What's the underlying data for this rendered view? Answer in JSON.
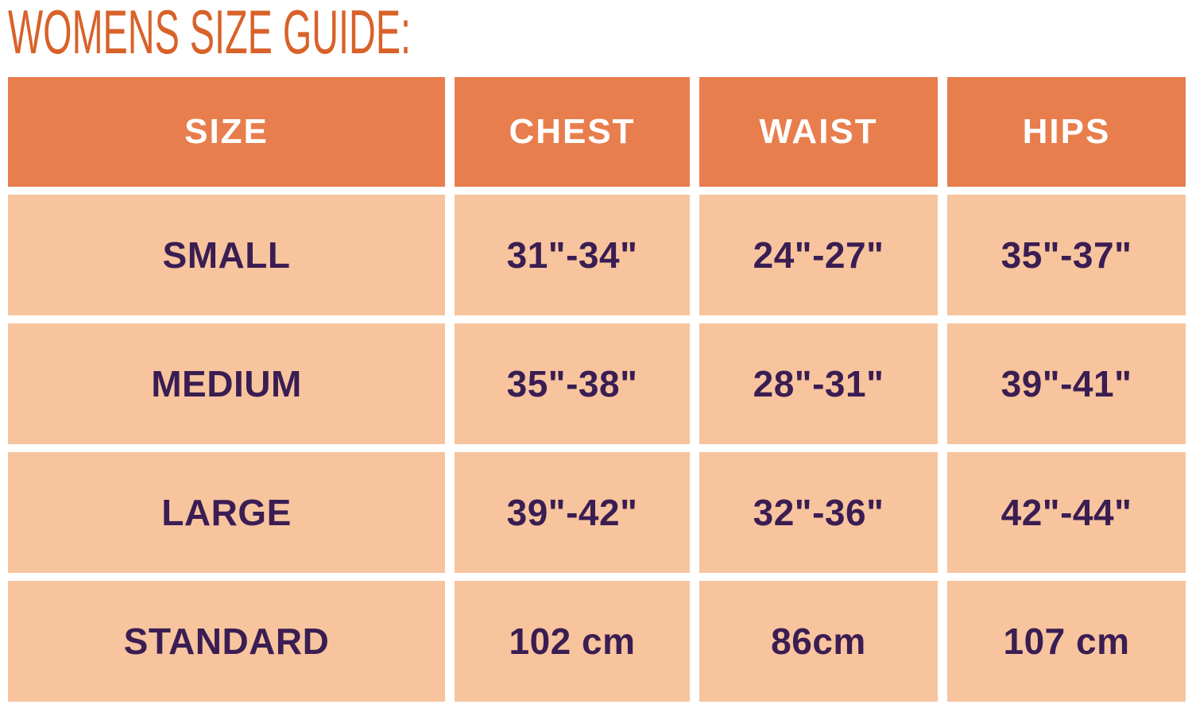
{
  "title": "WOMENS SIZE GUIDE:",
  "colors": {
    "title_orange": "#d8622a",
    "header_bg": "#e87e4d",
    "header_text": "#ffffff",
    "row_bg": "#f7c49e",
    "row_text": "#3a1d52",
    "background": "#ffffff"
  },
  "chart_data": {
    "type": "table",
    "title": "WOMENS SIZE GUIDE:",
    "columns": [
      "SIZE",
      "CHEST",
      "WAIST",
      "HIPS"
    ],
    "rows": [
      [
        "SMALL",
        "31\"-34\"",
        "24\"-27\"",
        "35\"-37\""
      ],
      [
        "MEDIUM",
        "35\"-38\"",
        "28\"-31\"",
        "39\"-41\""
      ],
      [
        "LARGE",
        "39\"-42\"",
        "32\"-36\"",
        "42\"-44\""
      ],
      [
        "STANDARD",
        "102 cm",
        "86cm",
        "107 cm"
      ]
    ],
    "layout": {
      "legend": "none",
      "grid": "off",
      "units_rows_1_3": "inches",
      "units_row_4": "centimeters"
    }
  }
}
